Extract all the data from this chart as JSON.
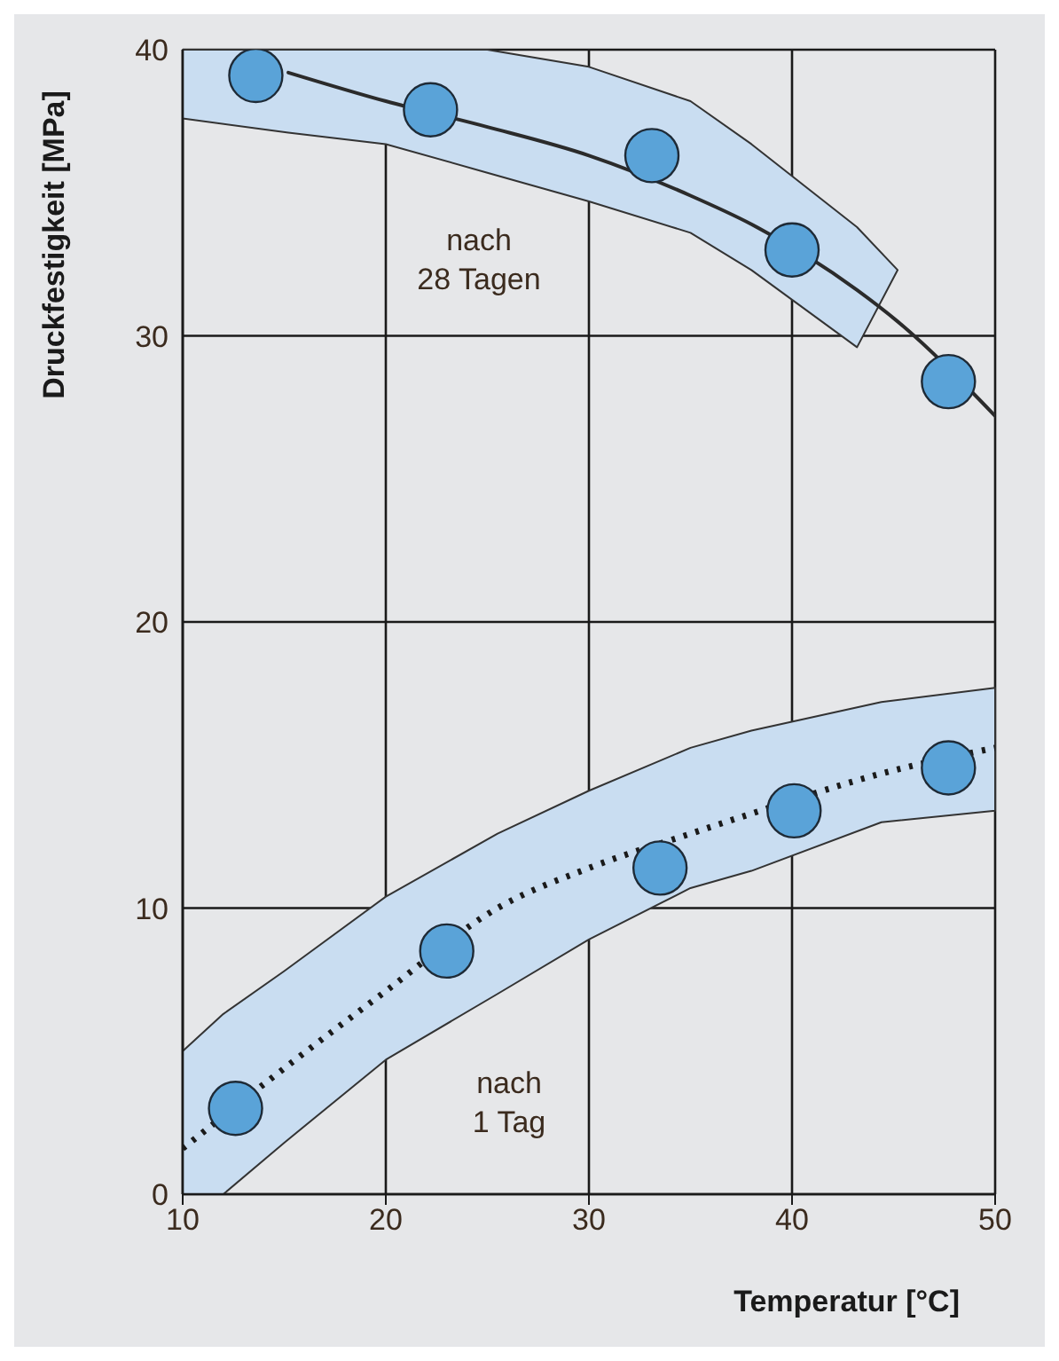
{
  "chart_data": {
    "type": "scatter",
    "xlabel": "Temperatur [°C]",
    "ylabel": "Druckfestigkeit [MPa]",
    "xlim": [
      10,
      50
    ],
    "xticks": [
      10,
      20,
      30,
      40,
      50
    ],
    "ylim": [
      0,
      40
    ],
    "yticks": [
      0,
      10,
      20,
      30,
      40
    ],
    "grid": true,
    "series": [
      {
        "type": "line",
        "color": "#1a1a1a",
        "line_style": "dotted",
        "x": [
          10,
          12,
          15,
          20,
          25.5,
          30,
          35,
          38,
          44.4,
          50
        ],
        "values": [
          1.6,
          null,
          4.4,
          7.1,
          10.0,
          11.4,
          12.6,
          13.3,
          14.7,
          15.6
        ],
        "lower": [
          0,
          0,
          1.8,
          4.7,
          7.0,
          8.9,
          10.7,
          11.3,
          13.0,
          13.4
        ],
        "upper": [
          5.0,
          6.3,
          7.8,
          10.4,
          12.6,
          14.1,
          15.6,
          16.2,
          17.2,
          17.7
        ]
      },
      {
        "type": "line",
        "color": "#2b2b2b",
        "line_style": "solid",
        "x": [
          10,
          15.2,
          20,
          25,
          30,
          35,
          38,
          43.2,
          45.2,
          50
        ],
        "values": [
          null,
          39.2,
          38.2,
          37.3,
          36.3,
          34.9,
          33.9,
          31.6,
          30.5,
          27.2
        ],
        "lower": [
          37.6,
          37.1,
          36.7,
          35.7,
          34.7,
          33.6,
          32.3,
          29.6,
          32.3,
          null
        ],
        "upper": [
          40,
          40,
          40,
          40,
          39.4,
          38.2,
          36.7,
          33.8,
          32.3,
          null
        ]
      },
      {
        "color": "#5aa3d8",
        "marker": "circle",
        "x": [
          13.6,
          22.2,
          33.1,
          40.0,
          47.7
        ],
        "values": [
          39.1,
          37.9,
          36.3,
          33.0,
          28.4
        ]
      },
      {
        "color": "#5aa3d8",
        "marker": "circle",
        "x": [
          12.6,
          23.0,
          33.5,
          40.1,
          47.7
        ],
        "values": [
          3.0,
          8.5,
          11.4,
          13.4,
          14.9
        ]
      }
    ],
    "annotations": [
      "nach 28 Tagen",
      "nach 1 Tag"
    ]
  }
}
